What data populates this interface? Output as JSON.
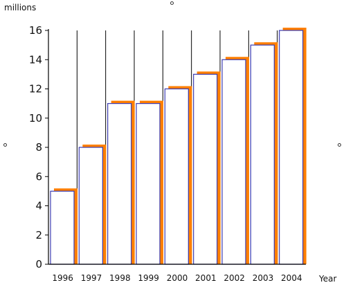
{
  "chart_data": {
    "type": "bar",
    "categories": [
      "1996",
      "1997",
      "1998",
      "1999",
      "2000",
      "2001",
      "2002",
      "2003",
      "2004"
    ],
    "values": [
      5,
      8,
      11,
      11,
      12,
      13,
      14,
      15,
      16
    ],
    "ylabel": "millions",
    "xlabel": "Year",
    "ylim": [
      0,
      16
    ],
    "yticks": [
      0,
      2,
      4,
      6,
      8,
      10,
      12,
      14,
      16
    ],
    "grid": "vertical",
    "colors": {
      "bar_fill": "#ffffff",
      "bar_border": "#3b3bb0",
      "bar_shadow": "#ff7f00",
      "axis": "#000000",
      "grid": "#000000"
    }
  }
}
